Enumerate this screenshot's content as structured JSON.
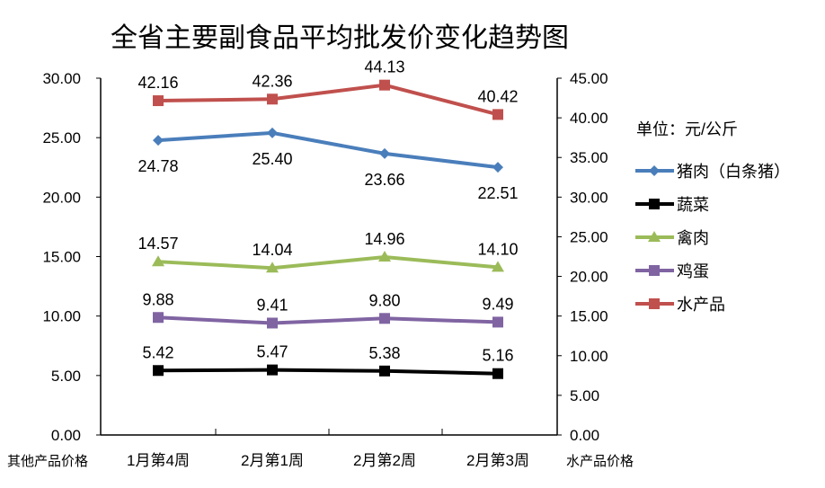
{
  "chart_data": {
    "type": "line",
    "title": "全省主要副食品平均批发价变化趋势图",
    "unit_label": "单位：元/公斤",
    "categories": [
      "1月第4周",
      "2月第1周",
      "2月第2周",
      "2月第3周"
    ],
    "left_axis": {
      "label": "其他产品价格",
      "ylim": [
        0,
        30
      ],
      "ticks": [
        "0.00",
        "5.00",
        "10.00",
        "15.00",
        "20.00",
        "25.00",
        "30.00"
      ]
    },
    "right_axis": {
      "label": "水产品价格",
      "ylim": [
        0,
        45
      ],
      "ticks": [
        "0.00",
        "5.00",
        "10.00",
        "15.00",
        "20.00",
        "25.00",
        "30.00",
        "35.00",
        "40.00",
        "45.00"
      ]
    },
    "legend_position": "right",
    "series": [
      {
        "name": "猪肉（白条猪）",
        "values": [
          24.78,
          25.4,
          23.66,
          22.51
        ],
        "labels": [
          "24.78",
          "25.40",
          "23.66",
          "22.51"
        ],
        "axis": "left",
        "color": "#4a7ebb",
        "marker": "diamond",
        "label_pos": "below"
      },
      {
        "name": "蔬菜",
        "values": [
          5.42,
          5.47,
          5.38,
          5.16
        ],
        "labels": [
          "5.42",
          "5.47",
          "5.38",
          "5.16"
        ],
        "axis": "left",
        "color": "#000000",
        "marker": "square",
        "label_pos": "above"
      },
      {
        "name": "禽肉",
        "values": [
          14.57,
          14.04,
          14.96,
          14.1
        ],
        "labels": [
          "14.57",
          "14.04",
          "14.96",
          "14.10"
        ],
        "axis": "left",
        "color": "#9bbb59",
        "marker": "triangle",
        "label_pos": "above"
      },
      {
        "name": "鸡蛋",
        "values": [
          9.88,
          9.41,
          9.8,
          9.49
        ],
        "labels": [
          "9.88",
          "9.41",
          "9.80",
          "9.49"
        ],
        "axis": "left",
        "color": "#8064a2",
        "marker": "square",
        "label_pos": "above"
      },
      {
        "name": "水产品",
        "values": [
          42.16,
          42.36,
          44.13,
          40.42
        ],
        "labels": [
          "42.16",
          "42.36",
          "44.13",
          "40.42"
        ],
        "axis": "right",
        "color": "#c0504d",
        "marker": "square",
        "label_pos": "above"
      }
    ]
  }
}
